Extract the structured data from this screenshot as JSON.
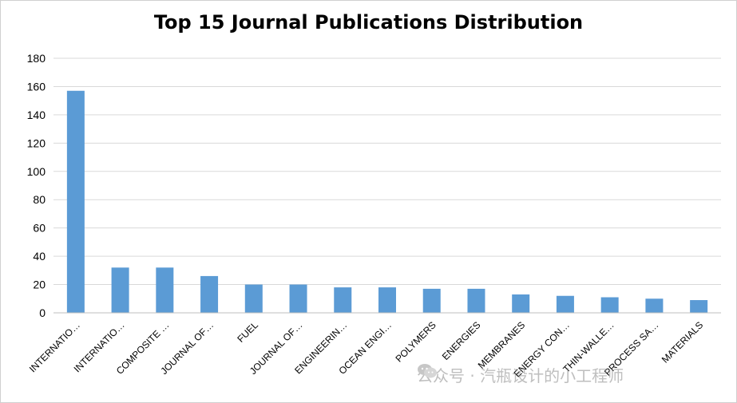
{
  "chart_data": {
    "type": "bar",
    "title": "Top 15 Journal Publications Distribution",
    "xlabel": "",
    "ylabel": "",
    "ylim": [
      0,
      180
    ],
    "yticks": [
      0,
      20,
      40,
      60,
      80,
      100,
      120,
      140,
      160,
      180
    ],
    "grid": "horizontal",
    "bar_color": "#5B9BD5",
    "categories": [
      "INTERNATIO…",
      "INTERNATIO…",
      "COMPOSITE …",
      "JOURNAL OF…",
      "FUEL",
      "JOURNAL OF…",
      "ENGINEERIN…",
      "OCEAN ENGI…",
      "POLYMERS",
      "ENERGIES",
      "MEMBRANES",
      "ENERGY CON…",
      "THIN-WALLE…",
      "PROCESS SA…",
      "MATERIALS"
    ],
    "values": [
      157,
      32,
      32,
      26,
      20,
      20,
      18,
      18,
      17,
      17,
      13,
      12,
      11,
      10,
      9
    ]
  },
  "watermark": {
    "icon": "wechat-icon",
    "text": "公众号 · 汽瓶设计的小工程师"
  }
}
